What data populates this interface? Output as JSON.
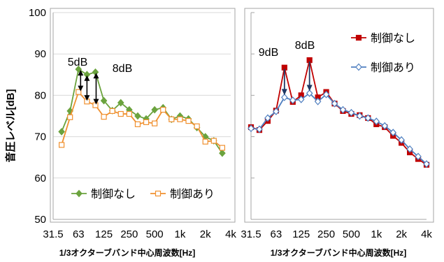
{
  "y_axis_label": "音圧レベル[dB]",
  "y_ticks": [
    "100",
    "90",
    "80",
    "70",
    "60",
    "50"
  ],
  "chart_data": [
    {
      "type": "line",
      "x": [
        "31.5",
        "40",
        "50",
        "63",
        "80",
        "100",
        "125",
        "160",
        "200",
        "250",
        "315",
        "400",
        "500",
        "630",
        "800",
        "1k",
        "1.25k",
        "1.6k",
        "2k",
        "2.5k",
        "3.15k",
        "4k"
      ],
      "tick_labels": [
        "31.5",
        "63",
        "125",
        "250",
        "500",
        "1k",
        "2k",
        "4k"
      ],
      "xlabel": "1/3オクターブバンド中心周波数[Hz]",
      "ylabel": "音圧レベル[dB]",
      "ylim": [
        50,
        100
      ],
      "grid": true,
      "legend": "bottom",
      "series": [
        {
          "name": "制御なし",
          "color": "#6ba33e",
          "marker": "diamond",
          "values": [
            null,
            71.2,
            76.2,
            86.3,
            85.0,
            85.6,
            78.7,
            76.3,
            78.2,
            76.5,
            75.0,
            74.3,
            76.5,
            77.0,
            74.2,
            75.0,
            74.3,
            72.2,
            70.0,
            69.0,
            66.0,
            null
          ]
        },
        {
          "name": "制御あり",
          "color": "#f0902f",
          "marker": "square-open",
          "values": [
            null,
            68.0,
            74.7,
            80.8,
            78.5,
            77.6,
            74.8,
            76.2,
            75.5,
            75.5,
            73.0,
            73.5,
            73.2,
            76.5,
            74.2,
            74.2,
            73.8,
            72.5,
            68.8,
            69.0,
            67.3,
            null
          ]
        }
      ],
      "annotations": [
        "5dB",
        "8dB"
      ]
    },
    {
      "type": "line",
      "x": [
        "31.5",
        "40",
        "50",
        "63",
        "80",
        "100",
        "125",
        "160",
        "200",
        "250",
        "315",
        "400",
        "500",
        "630",
        "800",
        "1k",
        "1.25k",
        "1.6k",
        "2k",
        "2.5k",
        "3.15k",
        "4k"
      ],
      "tick_labels": [
        "31.5",
        "63",
        "125",
        "250",
        "500",
        "1k",
        "2k",
        "4k"
      ],
      "xlabel": "1/3オクターブバンド中心周波数[Hz]",
      "ylim": [
        50,
        100
      ],
      "grid": true,
      "legend": "top-right",
      "series": [
        {
          "name": "制御なし",
          "color": "#c00000",
          "marker": "square",
          "values": [
            72.3,
            71.6,
            73.8,
            76.3,
            86.7,
            78.4,
            80.0,
            88.5,
            79.5,
            80.8,
            78.0,
            76.2,
            75.5,
            75.2,
            74.5,
            73.0,
            72.3,
            70.2,
            68.5,
            66.2,
            64.6,
            63.2
          ]
        },
        {
          "name": "制御あり",
          "color": "#4f7fc0",
          "marker": "diamond-open",
          "values": [
            72.0,
            71.8,
            74.5,
            76.1,
            79.5,
            78.8,
            79.0,
            80.5,
            78.5,
            80.2,
            78.0,
            76.5,
            75.8,
            75.0,
            74.5,
            73.7,
            72.6,
            71.0,
            69.2,
            67.0,
            65.2,
            63.4
          ]
        }
      ],
      "annotations": [
        "9dB",
        "8dB"
      ]
    }
  ]
}
